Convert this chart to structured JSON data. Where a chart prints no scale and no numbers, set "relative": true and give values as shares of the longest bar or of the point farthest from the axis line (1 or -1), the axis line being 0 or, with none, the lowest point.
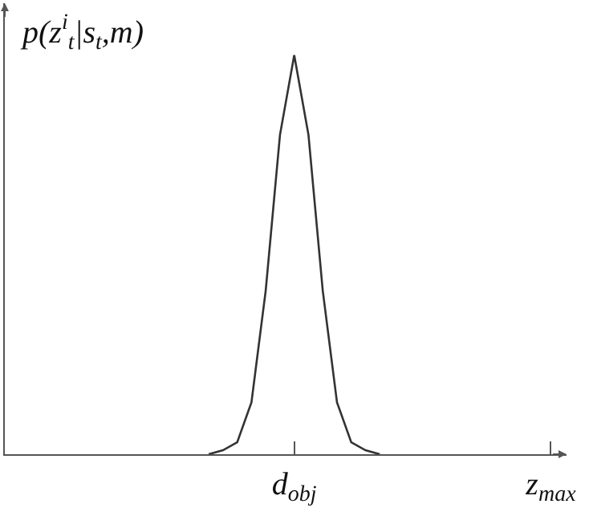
{
  "chart_data": {
    "type": "line",
    "relative": true,
    "ylabel": "p(z$^{i}$$_{t}$|s$_{t}$,m)",
    "categories": [
      null,
      null,
      null,
      null,
      null,
      null,
      null,
      null,
      null,
      null,
      null,
      null,
      null,
      null,
      null,
      null,
      null,
      null,
      null,
      null,
      "d$_{obj}$",
      null,
      null,
      null,
      null,
      null,
      null,
      null,
      null,
      null,
      null,
      null,
      null,
      null,
      null,
      null,
      null,
      null,
      "z$_{max}$"
    ],
    "series": [
      {
        "color": "#333333",
        "values": [
          null,
          null,
          null,
          null,
          null,
          null,
          null,
          null,
          null,
          null,
          null,
          null,
          null,
          null,
          0,
          0.01,
          0.03,
          0.13,
          0.41,
          0.8,
          1,
          0.8,
          0.41,
          0.13,
          0.03,
          0.01,
          0,
          null,
          null,
          null,
          null,
          null,
          null,
          null,
          null,
          null,
          null,
          null,
          null
        ]
      }
    ],
    "grid": false,
    "marker": "none",
    "line_style": "solid"
  }
}
